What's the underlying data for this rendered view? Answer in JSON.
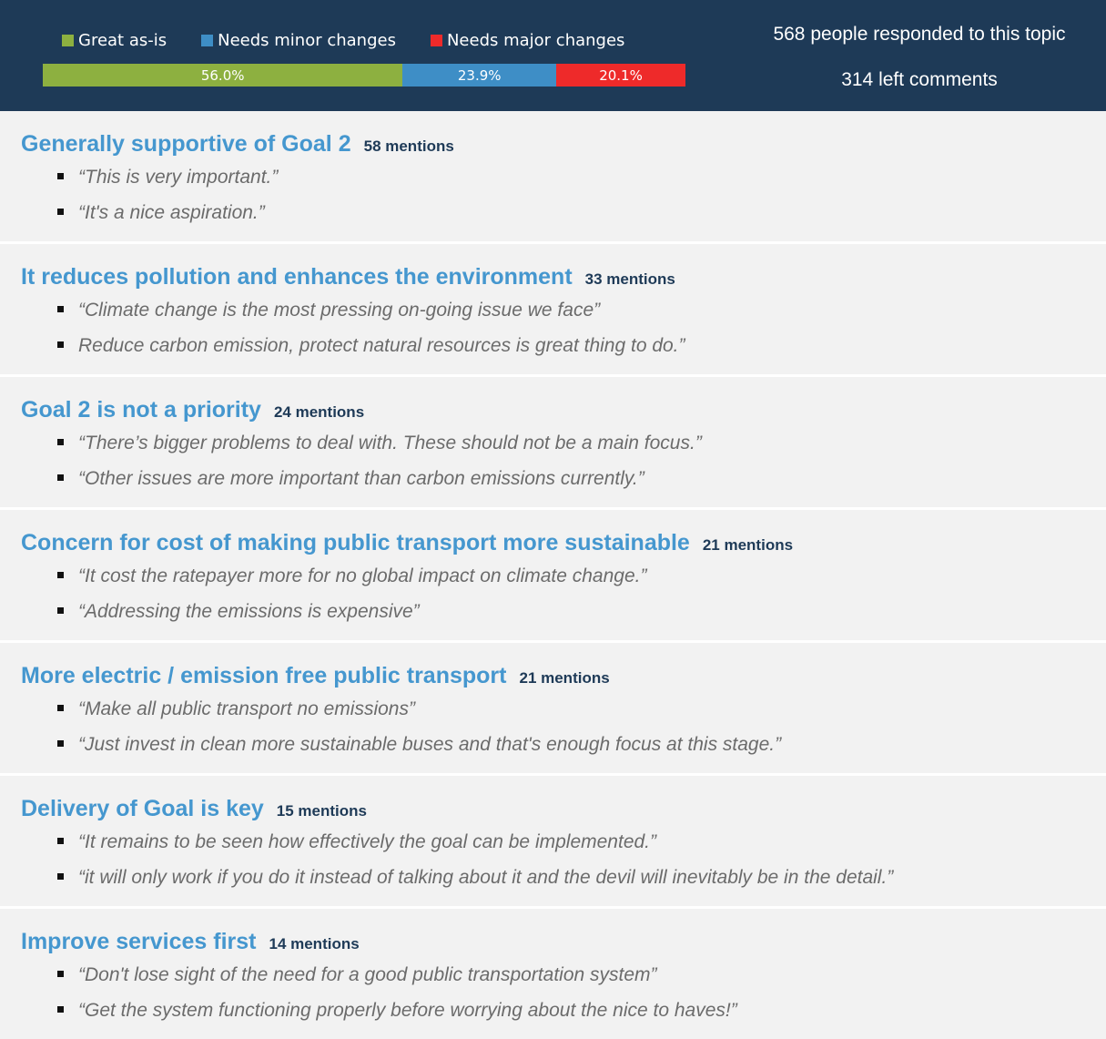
{
  "chart_data": {
    "type": "stacked-bar",
    "categories": [
      "Great as-is",
      "Needs minor changes",
      "Needs major changes"
    ],
    "values": [
      56.0,
      23.9,
      20.1
    ],
    "value_labels": [
      "56.0%",
      "23.9%",
      "20.1%"
    ],
    "colors": [
      "#8db040",
      "#3e8ec6",
      "#ee2a2a"
    ],
    "xlim": [
      0,
      100
    ]
  },
  "stats": [
    "568 people responded to this topic",
    "314 left comments"
  ],
  "themes": [
    {
      "title": "Generally supportive of Goal 2",
      "mentions": "58 mentions",
      "quotes": [
        "“This is very important.”",
        "“It's a nice aspiration.”"
      ]
    },
    {
      "title": "It reduces pollution and enhances the environment",
      "mentions": "33 mentions",
      "quotes": [
        "“Climate change is the most pressing on-going issue we face”",
        "Reduce carbon emission, protect natural resources is great thing to do.”"
      ]
    },
    {
      "title": "Goal 2 is not a priority",
      "mentions": "24 mentions",
      "quotes": [
        "“There’s bigger problems to deal with. These should not be a main focus.”",
        "“Other issues are more important than carbon emissions currently.”"
      ]
    },
    {
      "title": "Concern for cost of making public transport more sustainable",
      "mentions": "21 mentions",
      "quotes": [
        "“It cost the ratepayer more for no global impact on climate change.”",
        "“Addressing the emissions is expensive”"
      ]
    },
    {
      "title": "More electric / emission free public transport",
      "mentions": "21 mentions",
      "quotes": [
        "“Make all public transport no emissions”",
        "“Just invest in clean more sustainable buses and that's enough focus at this stage.”"
      ]
    },
    {
      "title": "Delivery of Goal is key",
      "mentions": "15 mentions",
      "quotes": [
        "“It remains to be seen how effectively the goal can be implemented.”",
        "“it will only work if you do it instead of talking about it and the devil will inevitably be in the detail.”"
      ]
    },
    {
      "title": "Improve services first",
      "mentions": "14 mentions",
      "quotes": [
        "“Don't lose sight of the need for a good public transportation system”",
        "“Get the system functioning properly before worrying about the nice to haves!”"
      ]
    }
  ]
}
